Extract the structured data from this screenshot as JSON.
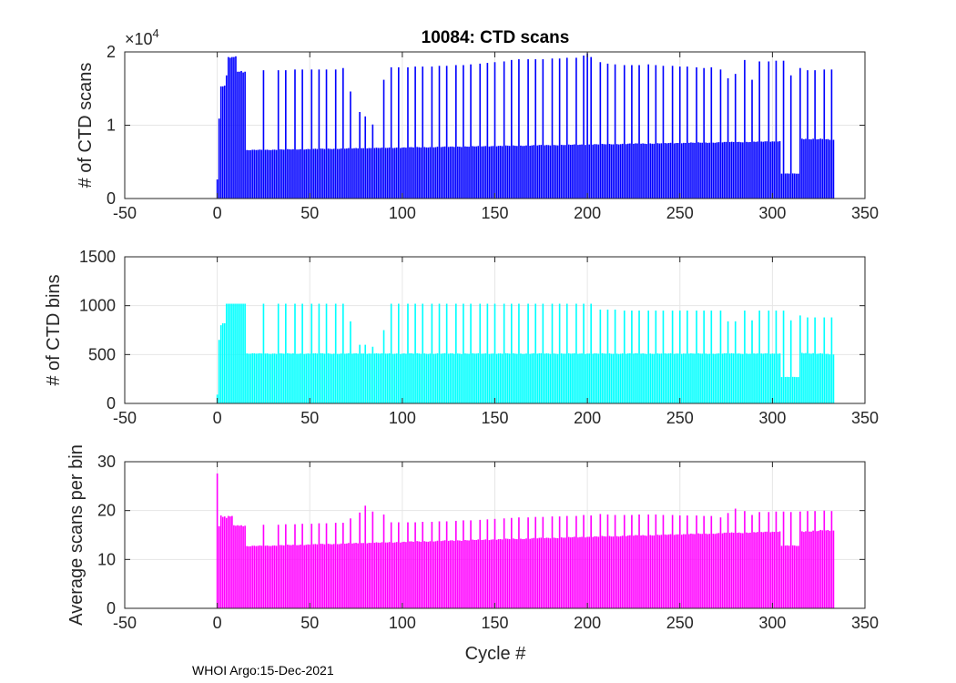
{
  "figure": {
    "title": "10084: CTD scans",
    "xlabel": "Cycle #",
    "footer": "WHOI Argo:15-Dec-2021"
  },
  "colors": {
    "scans": "#0000ff",
    "bins": "#00ffff",
    "avg": "#ff00ff",
    "axis": "#262626",
    "grid": "#e6e6e6"
  },
  "chart_data": [
    {
      "type": "bar",
      "id": "scans",
      "title": "10084: CTD scans",
      "ylabel": "# of CTD scans",
      "xlim": [
        -50,
        350
      ],
      "ylim": [
        0,
        20000
      ],
      "xticks": [
        -50,
        0,
        50,
        100,
        150,
        200,
        250,
        300,
        350
      ],
      "yticks": [
        0,
        10000,
        20000
      ],
      "ytick_labels": [
        "0",
        "1",
        "2"
      ],
      "exponent_label": "×10",
      "exponent_power": "4",
      "grid": true,
      "color": "scans",
      "x_range": [
        0,
        333
      ],
      "profile": {
        "initial": [
          [
            0,
            2600
          ],
          [
            1,
            10900
          ],
          [
            2,
            15300
          ],
          [
            3,
            15300
          ],
          [
            4,
            15400
          ],
          [
            5,
            16800
          ],
          [
            6,
            19300
          ],
          [
            7,
            19200
          ],
          [
            8,
            19300
          ],
          [
            9,
            19300
          ],
          [
            10,
            19400
          ],
          [
            11,
            17300
          ],
          [
            12,
            17300
          ],
          [
            13,
            17400
          ],
          [
            14,
            17200
          ],
          [
            15,
            17300
          ]
        ],
        "base_start": [
          16,
          6600
        ],
        "base_end": [
          304,
          7800
        ],
        "low_range": [
          305,
          314
        ],
        "low_value": 3400,
        "late_start": [
          315,
          8200
        ],
        "late_end": [
          333,
          8000
        ],
        "gaps": [
          272
        ],
        "spikes": [
          [
            25,
            17500
          ],
          [
            33,
            17500
          ],
          [
            37,
            17500
          ],
          [
            42,
            17600
          ],
          [
            46,
            17600
          ],
          [
            51,
            17600
          ],
          [
            55,
            17600
          ],
          [
            59,
            17600
          ],
          [
            64,
            17600
          ],
          [
            68,
            17800
          ],
          [
            72,
            14600
          ],
          [
            77,
            11800
          ],
          [
            80,
            11200
          ],
          [
            84,
            10100
          ],
          [
            90,
            16200
          ],
          [
            94,
            17900
          ],
          [
            98,
            17900
          ],
          [
            103,
            17900
          ],
          [
            107,
            18000
          ],
          [
            111,
            18000
          ],
          [
            116,
            18000
          ],
          [
            120,
            18100
          ],
          [
            124,
            18100
          ],
          [
            129,
            18200
          ],
          [
            133,
            18200
          ],
          [
            137,
            18300
          ],
          [
            142,
            18400
          ],
          [
            146,
            18500
          ],
          [
            150,
            18600
          ],
          [
            155,
            18700
          ],
          [
            159,
            18900
          ],
          [
            163,
            19000
          ],
          [
            168,
            19000
          ],
          [
            172,
            19000
          ],
          [
            176,
            19000
          ],
          [
            181,
            19100
          ],
          [
            185,
            19100
          ],
          [
            189,
            19200
          ],
          [
            194,
            19200
          ],
          [
            198,
            19500
          ],
          [
            200,
            19800
          ],
          [
            202,
            19300
          ],
          [
            207,
            18600
          ],
          [
            211,
            18400
          ],
          [
            215,
            18300
          ],
          [
            220,
            18200
          ],
          [
            224,
            18200
          ],
          [
            228,
            18200
          ],
          [
            233,
            18300
          ],
          [
            237,
            18200
          ],
          [
            241,
            18100
          ],
          [
            246,
            18100
          ],
          [
            250,
            18000
          ],
          [
            254,
            18000
          ],
          [
            259,
            17900
          ],
          [
            263,
            17800
          ],
          [
            267,
            17900
          ],
          [
            272,
            17600
          ],
          [
            276,
            16400
          ],
          [
            280,
            17000
          ],
          [
            285,
            18900
          ],
          [
            289,
            16200
          ],
          [
            293,
            18700
          ],
          [
            298,
            18700
          ],
          [
            302,
            18800
          ],
          [
            306,
            18800
          ],
          [
            310,
            16800
          ],
          [
            315,
            17800
          ],
          [
            319,
            17500
          ],
          [
            323,
            17500
          ],
          [
            328,
            17600
          ],
          [
            332,
            17600
          ]
        ]
      }
    },
    {
      "type": "bar",
      "id": "bins",
      "title": "",
      "ylabel": "# of CTD bins",
      "xlim": [
        -50,
        350
      ],
      "ylim": [
        0,
        1500
      ],
      "xticks": [
        -50,
        0,
        50,
        100,
        150,
        200,
        250,
        300,
        350
      ],
      "yticks": [
        0,
        500,
        1000,
        1500
      ],
      "ytick_labels": [
        "0",
        "500",
        "1000",
        "1500"
      ],
      "grid": true,
      "color": "bins",
      "x_range": [
        0,
        333
      ],
      "profile": {
        "initial": [
          [
            0,
            90
          ],
          [
            1,
            650
          ],
          [
            2,
            800
          ],
          [
            3,
            820
          ],
          [
            4,
            820
          ],
          [
            5,
            1020
          ],
          [
            6,
            1020
          ],
          [
            7,
            1020
          ],
          [
            8,
            1020
          ],
          [
            9,
            1020
          ],
          [
            10,
            1020
          ],
          [
            11,
            1020
          ],
          [
            12,
            1020
          ],
          [
            13,
            1020
          ],
          [
            14,
            1020
          ],
          [
            15,
            1020
          ]
        ],
        "base_start": [
          16,
          510
        ],
        "base_end": [
          304,
          510
        ],
        "low_range": [
          305,
          314
        ],
        "low_value": 270,
        "late_start": [
          315,
          520
        ],
        "late_end": [
          333,
          500
        ],
        "gaps": [
          272
        ],
        "spikes": [
          [
            25,
            1020
          ],
          [
            33,
            1020
          ],
          [
            37,
            1020
          ],
          [
            42,
            1020
          ],
          [
            46,
            1020
          ],
          [
            51,
            1020
          ],
          [
            55,
            1020
          ],
          [
            59,
            1020
          ],
          [
            64,
            1020
          ],
          [
            68,
            1020
          ],
          [
            72,
            840
          ],
          [
            77,
            600
          ],
          [
            80,
            600
          ],
          [
            84,
            580
          ],
          [
            90,
            750
          ],
          [
            94,
            1020
          ],
          [
            98,
            1020
          ],
          [
            103,
            1020
          ],
          [
            107,
            1020
          ],
          [
            111,
            1020
          ],
          [
            116,
            1020
          ],
          [
            120,
            1020
          ],
          [
            124,
            1020
          ],
          [
            129,
            1020
          ],
          [
            133,
            1020
          ],
          [
            137,
            1020
          ],
          [
            142,
            1020
          ],
          [
            146,
            1020
          ],
          [
            150,
            1020
          ],
          [
            155,
            1020
          ],
          [
            159,
            1020
          ],
          [
            163,
            1020
          ],
          [
            168,
            1020
          ],
          [
            172,
            1020
          ],
          [
            176,
            1020
          ],
          [
            181,
            1020
          ],
          [
            185,
            1020
          ],
          [
            189,
            1020
          ],
          [
            194,
            1020
          ],
          [
            198,
            1020
          ],
          [
            202,
            1020
          ],
          [
            207,
            960
          ],
          [
            211,
            960
          ],
          [
            215,
            960
          ],
          [
            220,
            950
          ],
          [
            224,
            950
          ],
          [
            228,
            950
          ],
          [
            233,
            950
          ],
          [
            237,
            950
          ],
          [
            241,
            950
          ],
          [
            246,
            950
          ],
          [
            250,
            950
          ],
          [
            254,
            950
          ],
          [
            259,
            950
          ],
          [
            263,
            950
          ],
          [
            267,
            950
          ],
          [
            272,
            950
          ],
          [
            276,
            840
          ],
          [
            280,
            840
          ],
          [
            285,
            950
          ],
          [
            289,
            850
          ],
          [
            293,
            950
          ],
          [
            298,
            950
          ],
          [
            302,
            950
          ],
          [
            306,
            950
          ],
          [
            310,
            850
          ],
          [
            315,
            900
          ],
          [
            319,
            880
          ],
          [
            323,
            880
          ],
          [
            328,
            880
          ],
          [
            332,
            880
          ]
        ]
      }
    },
    {
      "type": "bar",
      "id": "avg",
      "title": "",
      "ylabel": "Average scans per bin",
      "xlabel": "Cycle #",
      "xlim": [
        -50,
        350
      ],
      "ylim": [
        0,
        30
      ],
      "xticks": [
        -50,
        0,
        50,
        100,
        150,
        200,
        250,
        300,
        350
      ],
      "yticks": [
        0,
        10,
        20,
        30
      ],
      "ytick_labels": [
        "0",
        "10",
        "20",
        "30"
      ],
      "grid": true,
      "color": "avg",
      "x_range": [
        0,
        333
      ],
      "profile": {
        "initial": [
          [
            0,
            27.6
          ],
          [
            1,
            16.8
          ],
          [
            2,
            19.0
          ],
          [
            3,
            18.7
          ],
          [
            4,
            18.8
          ],
          [
            5,
            18.5
          ],
          [
            6,
            18.9
          ],
          [
            7,
            18.8
          ],
          [
            8,
            18.9
          ],
          [
            9,
            17.0
          ],
          [
            10,
            16.9
          ],
          [
            11,
            17.0
          ],
          [
            12,
            16.9
          ],
          [
            13,
            17.0
          ],
          [
            14,
            16.8
          ],
          [
            15,
            16.9
          ]
        ],
        "base_start": [
          16,
          12.7
        ],
        "base_end": [
          304,
          15.7
        ],
        "low_range": [
          305,
          314
        ],
        "low_value": 12.8,
        "late_start": [
          315,
          15.8
        ],
        "late_end": [
          333,
          15.9
        ],
        "gaps": [
          272
        ],
        "spikes": [
          [
            25,
            17.1
          ],
          [
            33,
            17.1
          ],
          [
            37,
            17.2
          ],
          [
            42,
            17.2
          ],
          [
            46,
            17.3
          ],
          [
            51,
            17.3
          ],
          [
            55,
            17.4
          ],
          [
            59,
            17.4
          ],
          [
            64,
            17.5
          ],
          [
            68,
            17.5
          ],
          [
            72,
            18.4
          ],
          [
            77,
            19.6
          ],
          [
            80,
            21.0
          ],
          [
            84,
            19.8
          ],
          [
            90,
            19.2
          ],
          [
            94,
            17.6
          ],
          [
            98,
            17.6
          ],
          [
            103,
            17.6
          ],
          [
            107,
            17.6
          ],
          [
            111,
            17.7
          ],
          [
            116,
            17.7
          ],
          [
            120,
            17.8
          ],
          [
            124,
            17.8
          ],
          [
            129,
            17.9
          ],
          [
            133,
            18.0
          ],
          [
            137,
            18.0
          ],
          [
            142,
            18.1
          ],
          [
            146,
            18.2
          ],
          [
            150,
            18.3
          ],
          [
            155,
            18.4
          ],
          [
            159,
            18.5
          ],
          [
            163,
            18.6
          ],
          [
            168,
            18.6
          ],
          [
            172,
            18.7
          ],
          [
            176,
            18.7
          ],
          [
            181,
            18.8
          ],
          [
            185,
            18.8
          ],
          [
            189,
            18.9
          ],
          [
            194,
            18.9
          ],
          [
            198,
            19.1
          ],
          [
            202,
            19.0
          ],
          [
            207,
            19.3
          ],
          [
            211,
            19.2
          ],
          [
            215,
            19.1
          ],
          [
            220,
            19.1
          ],
          [
            224,
            19.1
          ],
          [
            228,
            19.2
          ],
          [
            233,
            19.2
          ],
          [
            237,
            19.2
          ],
          [
            241,
            19.1
          ],
          [
            246,
            19.1
          ],
          [
            250,
            19.0
          ],
          [
            254,
            19.0
          ],
          [
            259,
            19.0
          ],
          [
            263,
            18.9
          ],
          [
            267,
            18.9
          ],
          [
            272,
            18.6
          ],
          [
            276,
            19.5
          ],
          [
            280,
            20.4
          ],
          [
            285,
            19.9
          ],
          [
            289,
            19.1
          ],
          [
            293,
            19.7
          ],
          [
            298,
            19.7
          ],
          [
            302,
            19.8
          ],
          [
            306,
            19.8
          ],
          [
            310,
            19.7
          ],
          [
            315,
            19.8
          ],
          [
            319,
            19.9
          ],
          [
            323,
            19.9
          ],
          [
            328,
            20.0
          ],
          [
            332,
            19.9
          ]
        ]
      }
    }
  ]
}
